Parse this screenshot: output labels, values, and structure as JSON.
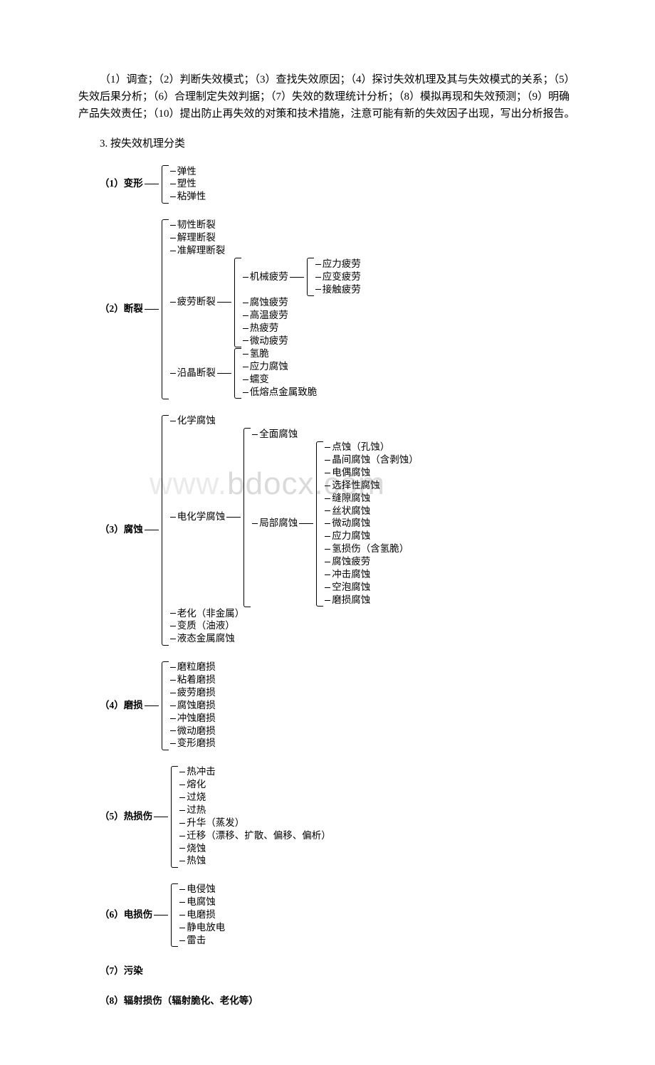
{
  "intro_paragraph": "（1）调查；（2）判断失效模式；（3）查找失效原因；（4）探讨失效机理及其与失效模式的关系；（5）失效后果分析；（6）合理制定失效判据；（7）失效的数理统计分析；（8）模拟再现和失效预测；（9）明确产品失效责任；（10）提出防止再失效的对策和技术措施，注意可能有新的失效因子出现，写出分析报告。",
  "section_heading": "3. 按失效机理分类",
  "watermark_text": "www.bdocx.com",
  "trees": {
    "t1": {
      "root": "（1）变形",
      "children": [
        "弹性",
        "塑性",
        "粘弹性"
      ]
    },
    "t2": {
      "root": "（2）断裂",
      "children": [
        {
          "label": "",
          "leaf": "韧性断裂"
        },
        {
          "label": "",
          "leaf": "解理断裂"
        },
        {
          "label": "",
          "leaf": "准解理断裂"
        },
        {
          "label": "疲劳断裂",
          "children": [
            {
              "label": "机械疲劳",
              "children": [
                "应力疲劳",
                "应变疲劳",
                "接触疲劳"
              ]
            },
            {
              "label": "",
              "leaf": "腐蚀疲劳"
            },
            {
              "label": "",
              "leaf": "高温疲劳"
            },
            {
              "label": "",
              "leaf": "热疲劳"
            },
            {
              "label": "",
              "leaf": "微动疲劳"
            }
          ]
        },
        {
          "label": "沿晶断裂",
          "children": [
            "氢脆",
            "应力腐蚀",
            "蠕变",
            "低熔点金属致脆"
          ]
        }
      ]
    },
    "t3": {
      "root": "（3）腐蚀",
      "left": [
        "化学腐蚀",
        "电化学腐蚀",
        "老化（非金属）",
        "变质（油液）",
        "液态金属腐蚀"
      ],
      "mid_top": "全面腐蚀",
      "mid_bot": "局部腐蚀",
      "right": [
        "点蚀（孔蚀）",
        "晶间腐蚀（含剥蚀）",
        "电偶腐蚀",
        "选择性腐蚀",
        "缝隙腐蚀",
        "丝状腐蚀",
        "微动腐蚀",
        "应力腐蚀",
        "氢损伤（含氢脆）",
        "腐蚀疲劳",
        "冲击腐蚀",
        "空泡腐蚀",
        "磨损腐蚀"
      ]
    },
    "t4": {
      "root": "（4）磨损",
      "children": [
        "磨粒磨损",
        "粘着磨损",
        "疲劳磨损",
        "腐蚀磨损",
        "冲蚀磨损",
        "微动磨损",
        "变形磨损"
      ]
    },
    "t5": {
      "root": "（5）热损伤",
      "children": [
        "热冲击",
        "熔化",
        "过烧",
        "过热",
        "升华（蒸发）",
        "迁移（漂移、扩散、偏移、偏析）",
        "烧蚀",
        "热蚀"
      ]
    },
    "t6": {
      "root": "（6）电损伤",
      "children": [
        "电侵蚀",
        "电腐蚀",
        "电磨损",
        "静电放电",
        "雷击"
      ]
    },
    "t7": "（7）污染",
    "t8": "（8）辐射损伤（辐射脆化、老化等）"
  }
}
